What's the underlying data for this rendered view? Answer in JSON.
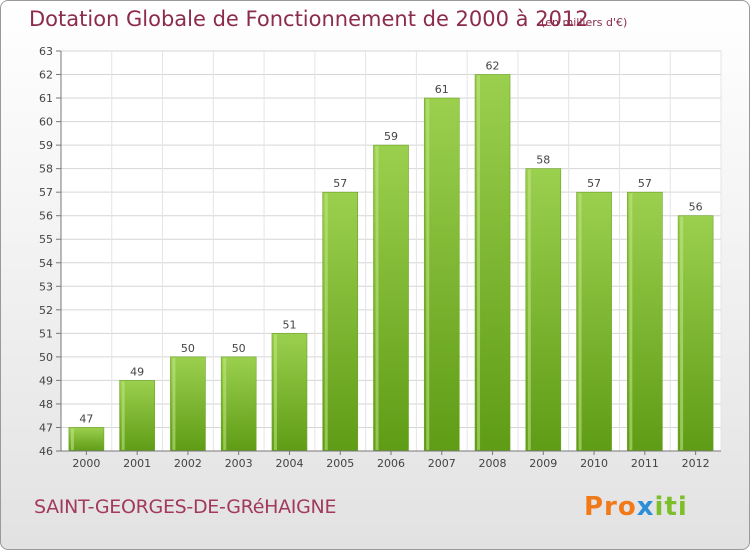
{
  "header": {
    "title": "Dotation Globale de Fonctionnement de 2000 à 2012",
    "subtitle": "(en milliers d'€)"
  },
  "footer": {
    "commune": "SAINT-GEORGES-DE-GRéHAIGNE",
    "logo": "Proxiti",
    "logo_parts": [
      "Pro",
      "x",
      "iti"
    ]
  },
  "colors": {
    "bar_light": "#9bd04e",
    "bar_dark": "#5f9c16",
    "title": "#8c2b4a",
    "grid": "#d6d6d6"
  },
  "chart_data": {
    "type": "bar",
    "title": "Dotation Globale de Fonctionnement de 2000 à 2012",
    "subtitle": "(en milliers d'€)",
    "categories": [
      "2000",
      "2001",
      "2002",
      "2003",
      "2004",
      "2005",
      "2006",
      "2007",
      "2008",
      "2009",
      "2010",
      "2011",
      "2012"
    ],
    "values": [
      47,
      49,
      50,
      50,
      51,
      57,
      59,
      61,
      62,
      58,
      57,
      57,
      56
    ],
    "ylim": [
      46,
      63
    ],
    "yticks": [
      46,
      47,
      48,
      49,
      50,
      51,
      52,
      53,
      54,
      55,
      56,
      57,
      58,
      59,
      60,
      61,
      62,
      63
    ],
    "xlabel": "",
    "ylabel": "",
    "grid": true
  }
}
